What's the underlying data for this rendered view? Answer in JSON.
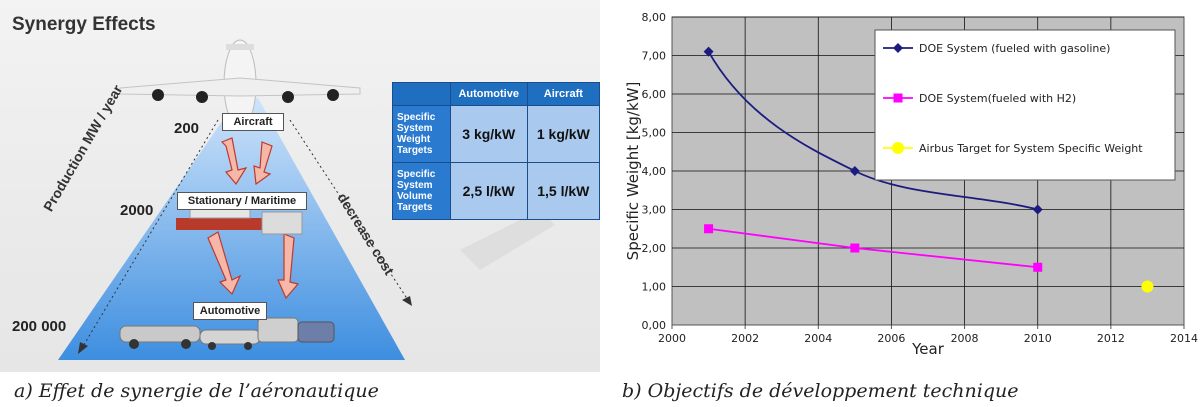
{
  "left": {
    "title": "Synergy Effects",
    "levels": {
      "aircraft": "Aircraft",
      "stationary": "Stationary / Maritime",
      "automotive": "Automotive"
    },
    "volumes": [
      "200",
      "2000",
      "200 000"
    ],
    "arrow_left_label": "Production MW / year",
    "arrow_right_label": "decrease cost",
    "table": {
      "headers": [
        "",
        "Automotive",
        "Aircraft"
      ],
      "rows": [
        {
          "label": "Specific System Weight Targets",
          "automotive": "3 kg/kW",
          "aircraft": "1 kg/kW"
        },
        {
          "label": "Specific System Volume Targets",
          "automotive": "2,5 l/kW",
          "aircraft": "1,5 l/kW"
        }
      ]
    }
  },
  "captions": {
    "a": "a)   Effet de synergie de l’aéronautique",
    "b": "b)   Objectifs de développement technique"
  },
  "chart_data": {
    "type": "line",
    "xlabel": "Year",
    "ylabel": "Specific Weight [kg/kW]",
    "xlim": [
      2000,
      2014
    ],
    "ylim": [
      0,
      8
    ],
    "xticks": [
      "2000",
      "2002",
      "2004",
      "2006",
      "2008",
      "2010",
      "2012",
      "2014"
    ],
    "yticks": [
      "0,00",
      "1,00",
      "2,00",
      "3,00",
      "4,00",
      "5,00",
      "6,00",
      "7,00",
      "8,00"
    ],
    "grid": true,
    "legend_position": "top-right",
    "series": [
      {
        "name": "DOE System (fueled with gasoline)",
        "color": "#1c1c80",
        "marker": "diamond",
        "x": [
          2001,
          2005,
          2010
        ],
        "y": [
          7.1,
          4.0,
          3.0
        ]
      },
      {
        "name": "DOE System(fueled with H2)",
        "color": "#ff00ff",
        "marker": "square",
        "x": [
          2001,
          2005,
          2010
        ],
        "y": [
          2.5,
          2.0,
          1.5
        ]
      },
      {
        "name": "Airbus Target for System Specific Weight",
        "color": "#ffff00",
        "marker": "circle",
        "x": [
          2013
        ],
        "y": [
          1.0
        ]
      }
    ]
  }
}
